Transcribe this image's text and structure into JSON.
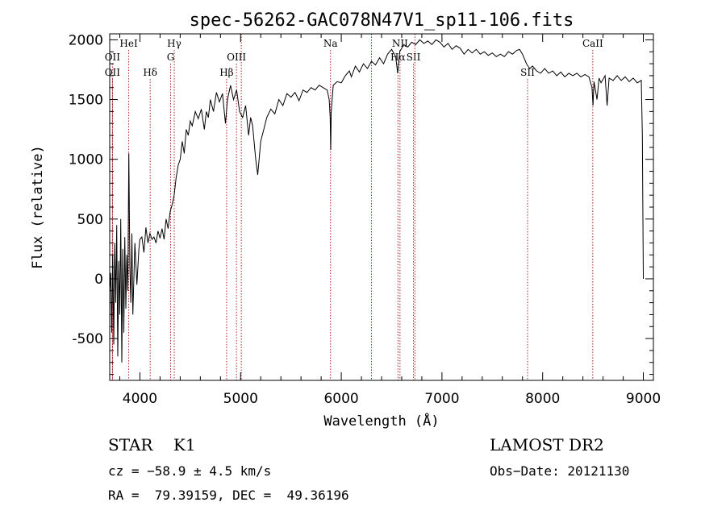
{
  "chart_data": {
    "type": "line",
    "title": "spec-56262-GAC078N47V1_sp11-106.fits",
    "xlabel": "Wavelength (Å)",
    "ylabel": "Flux (relative)",
    "xlim": [
      3700,
      9100
    ],
    "ylim": [
      -850,
      2050
    ],
    "xticks": [
      4000,
      5000,
      6000,
      7000,
      8000,
      9000
    ],
    "yticks": [
      -500,
      0,
      500,
      1000,
      1500,
      2000
    ],
    "series": [
      {
        "values": [
          [
            3700,
            -100
          ],
          [
            3710,
            50
          ],
          [
            3720,
            -450
          ],
          [
            3730,
            200
          ],
          [
            3740,
            -550
          ],
          [
            3750,
            300
          ],
          [
            3760,
            -200
          ],
          [
            3770,
            450
          ],
          [
            3780,
            -650
          ],
          [
            3790,
            150
          ],
          [
            3800,
            -300
          ],
          [
            3810,
            500
          ],
          [
            3820,
            -700
          ],
          [
            3830,
            250
          ],
          [
            3840,
            -450
          ],
          [
            3850,
            350
          ],
          [
            3860,
            -250
          ],
          [
            3870,
            200
          ],
          [
            3880,
            -100
          ],
          [
            3890,
            1050
          ],
          [
            3900,
            100
          ],
          [
            3910,
            -200
          ],
          [
            3920,
            380
          ],
          [
            3930,
            -300
          ],
          [
            3950,
            300
          ],
          [
            3970,
            -50
          ],
          [
            3990,
            250
          ],
          [
            4000,
            330
          ],
          [
            4020,
            350
          ],
          [
            4040,
            220
          ],
          [
            4060,
            430
          ],
          [
            4080,
            300
          ],
          [
            4100,
            380
          ],
          [
            4120,
            330
          ],
          [
            4140,
            350
          ],
          [
            4160,
            300
          ],
          [
            4180,
            400
          ],
          [
            4200,
            340
          ],
          [
            4220,
            420
          ],
          [
            4240,
            330
          ],
          [
            4260,
            500
          ],
          [
            4280,
            420
          ],
          [
            4300,
            560
          ],
          [
            4320,
            620
          ],
          [
            4340,
            700
          ],
          [
            4360,
            850
          ],
          [
            4380,
            950
          ],
          [
            4400,
            1000
          ],
          [
            4420,
            1150
          ],
          [
            4440,
            1050
          ],
          [
            4460,
            1250
          ],
          [
            4480,
            1200
          ],
          [
            4500,
            1320
          ],
          [
            4520,
            1280
          ],
          [
            4550,
            1400
          ],
          [
            4580,
            1340
          ],
          [
            4610,
            1420
          ],
          [
            4640,
            1250
          ],
          [
            4660,
            1400
          ],
          [
            4680,
            1350
          ],
          [
            4700,
            1500
          ],
          [
            4730,
            1400
          ],
          [
            4760,
            1560
          ],
          [
            4790,
            1480
          ],
          [
            4820,
            1550
          ],
          [
            4850,
            1300
          ],
          [
            4870,
            1500
          ],
          [
            4900,
            1620
          ],
          [
            4930,
            1500
          ],
          [
            4960,
            1580
          ],
          [
            4990,
            1400
          ],
          [
            5020,
            1350
          ],
          [
            5050,
            1450
          ],
          [
            5080,
            1200
          ],
          [
            5100,
            1350
          ],
          [
            5120,
            1280
          ],
          [
            5150,
            1000
          ],
          [
            5170,
            870
          ],
          [
            5200,
            1150
          ],
          [
            5230,
            1250
          ],
          [
            5260,
            1350
          ],
          [
            5300,
            1420
          ],
          [
            5340,
            1380
          ],
          [
            5380,
            1500
          ],
          [
            5420,
            1450
          ],
          [
            5460,
            1550
          ],
          [
            5500,
            1520
          ],
          [
            5540,
            1560
          ],
          [
            5580,
            1490
          ],
          [
            5620,
            1580
          ],
          [
            5660,
            1560
          ],
          [
            5700,
            1600
          ],
          [
            5740,
            1580
          ],
          [
            5780,
            1620
          ],
          [
            5820,
            1600
          ],
          [
            5860,
            1580
          ],
          [
            5880,
            1500
          ],
          [
            5890,
            1350
          ],
          [
            5895,
            1080
          ],
          [
            5900,
            1400
          ],
          [
            5920,
            1620
          ],
          [
            5960,
            1650
          ],
          [
            6000,
            1640
          ],
          [
            6040,
            1700
          ],
          [
            6080,
            1740
          ],
          [
            6100,
            1690
          ],
          [
            6140,
            1780
          ],
          [
            6180,
            1730
          ],
          [
            6220,
            1800
          ],
          [
            6260,
            1760
          ],
          [
            6300,
            1820
          ],
          [
            6340,
            1790
          ],
          [
            6380,
            1850
          ],
          [
            6420,
            1800
          ],
          [
            6460,
            1880
          ],
          [
            6500,
            1920
          ],
          [
            6540,
            1860
          ],
          [
            6560,
            1720
          ],
          [
            6580,
            1900
          ],
          [
            6620,
            1960
          ],
          [
            6660,
            1940
          ],
          [
            6700,
            1980
          ],
          [
            6740,
            1960
          ],
          [
            6780,
            2000
          ],
          [
            6820,
            1970
          ],
          [
            6860,
            1990
          ],
          [
            6900,
            1960
          ],
          [
            6940,
            2000
          ],
          [
            6980,
            1980
          ],
          [
            7020,
            1940
          ],
          [
            7060,
            1970
          ],
          [
            7100,
            1920
          ],
          [
            7140,
            1950
          ],
          [
            7180,
            1930
          ],
          [
            7220,
            1880
          ],
          [
            7260,
            1920
          ],
          [
            7300,
            1890
          ],
          [
            7340,
            1920
          ],
          [
            7380,
            1880
          ],
          [
            7420,
            1900
          ],
          [
            7460,
            1870
          ],
          [
            7500,
            1890
          ],
          [
            7540,
            1860
          ],
          [
            7580,
            1880
          ],
          [
            7620,
            1860
          ],
          [
            7660,
            1900
          ],
          [
            7700,
            1880
          ],
          [
            7740,
            1910
          ],
          [
            7770,
            1920
          ],
          [
            7800,
            1880
          ],
          [
            7840,
            1800
          ],
          [
            7870,
            1760
          ],
          [
            7900,
            1780
          ],
          [
            7940,
            1740
          ],
          [
            7980,
            1720
          ],
          [
            8020,
            1760
          ],
          [
            8060,
            1720
          ],
          [
            8100,
            1740
          ],
          [
            8140,
            1700
          ],
          [
            8180,
            1730
          ],
          [
            8220,
            1690
          ],
          [
            8260,
            1720
          ],
          [
            8300,
            1700
          ],
          [
            8340,
            1720
          ],
          [
            8380,
            1690
          ],
          [
            8420,
            1710
          ],
          [
            8460,
            1690
          ],
          [
            8490,
            1600
          ],
          [
            8500,
            1450
          ],
          [
            8510,
            1650
          ],
          [
            8540,
            1500
          ],
          [
            8560,
            1680
          ],
          [
            8580,
            1640
          ],
          [
            8620,
            1700
          ],
          [
            8640,
            1450
          ],
          [
            8660,
            1680
          ],
          [
            8700,
            1660
          ],
          [
            8740,
            1700
          ],
          [
            8780,
            1660
          ],
          [
            8820,
            1690
          ],
          [
            8860,
            1650
          ],
          [
            8900,
            1680
          ],
          [
            8940,
            1640
          ],
          [
            8980,
            1660
          ],
          [
            8990,
            1200
          ],
          [
            9000,
            0
          ]
        ]
      }
    ],
    "lines": [
      {
        "x": 3727,
        "label": "OII",
        "row": 3
      },
      {
        "x": 3727,
        "label": "OII",
        "row": 2
      },
      {
        "x": 3889,
        "label": "HeI",
        "row": 1
      },
      {
        "x": 4102,
        "label": "Hδ",
        "row": 3
      },
      {
        "x": 4305,
        "label": "G",
        "row": 2
      },
      {
        "x": 4341,
        "label": "Hγ",
        "row": 1
      },
      {
        "x": 4861,
        "label": "Hβ",
        "row": 3
      },
      {
        "x": 4959,
        "label": "OIII",
        "row": 2
      },
      {
        "x": 5007,
        "label": "",
        "row": 0
      },
      {
        "x": 5893,
        "label": "Na",
        "row": 1
      },
      {
        "x": 6300,
        "label": "",
        "row": 0
      },
      {
        "x": 6563,
        "label": "Hα",
        "row": 2
      },
      {
        "x": 6583,
        "label": "NII",
        "row": 1
      },
      {
        "x": 6717,
        "label": "SII",
        "row": 2
      },
      {
        "x": 6731,
        "label": "",
        "row": 0
      },
      {
        "x": 7850,
        "label": "SII",
        "row": 3
      },
      {
        "x": 8498,
        "label": "CaII",
        "row": 1
      }
    ],
    "line_color": "#b02020",
    "grid": false
  },
  "info": {
    "class": "STAR    K1",
    "survey": "LAMOST DR2",
    "cz": "cz = −58.9 ± 4.5 km/s",
    "obsdate": "Obs−Date: 20121130",
    "radec": "RA =  79.39159, DEC =  49.36196"
  }
}
